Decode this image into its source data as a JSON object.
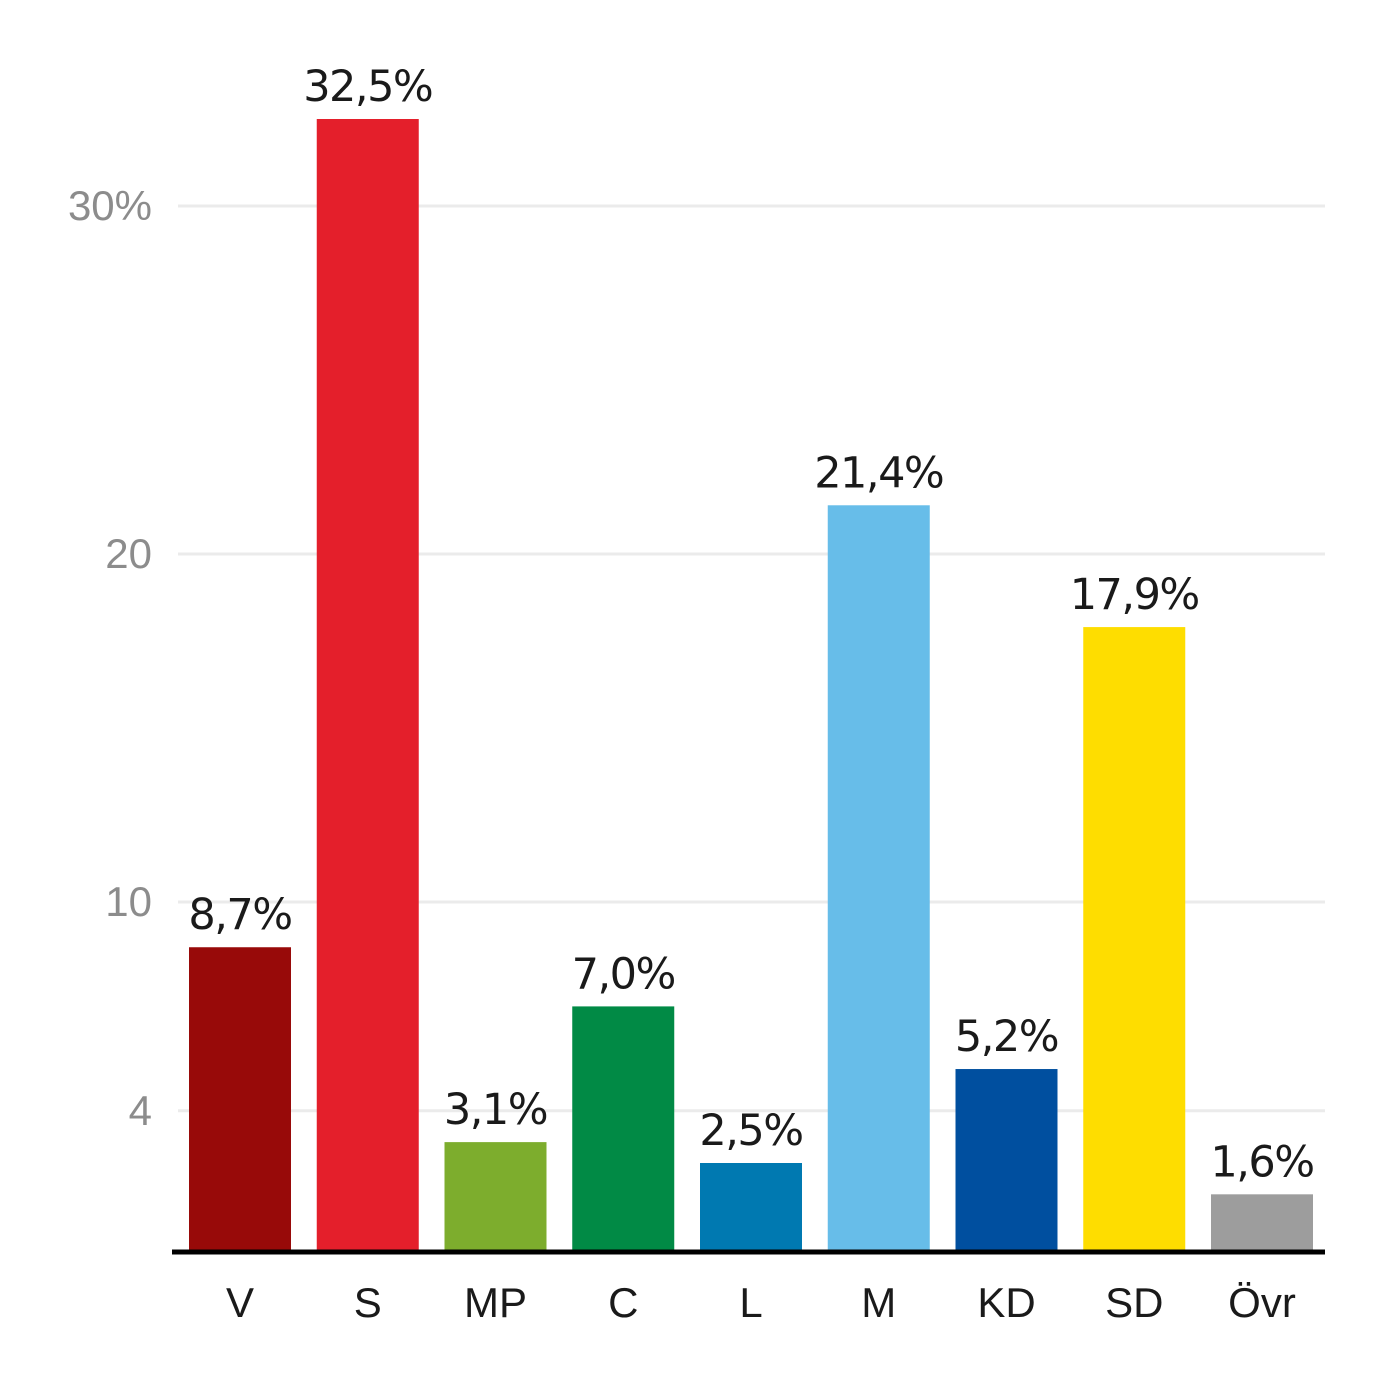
{
  "chart_data": {
    "type": "bar",
    "title": "",
    "xlabel": "",
    "ylabel": "",
    "ylim": [
      0,
      32.5
    ],
    "grid": true,
    "y_ticks": [
      {
        "value": 4,
        "label": "4"
      },
      {
        "value": 10,
        "label": "10"
      },
      {
        "value": 20,
        "label": "20"
      },
      {
        "value": 30,
        "label": "30%"
      }
    ],
    "categories": [
      "V",
      "S",
      "MP",
      "C",
      "L",
      "M",
      "KD",
      "SD",
      "Övr"
    ],
    "values": [
      8.7,
      32.5,
      3.1,
      7.0,
      2.5,
      21.4,
      5.2,
      17.9,
      1.6
    ],
    "value_labels": [
      "8,7%",
      "32,5%",
      "3,1%",
      "7,0%",
      "2,5%",
      "21,4%",
      "5,2%",
      "17,9%",
      "1,6%"
    ],
    "colors": [
      "#980a09",
      "#e41f2b",
      "#7dad2d",
      "#018a45",
      "#0079b1",
      "#67bde9",
      "#004f9f",
      "#fedd00",
      "#9d9d9d"
    ]
  }
}
